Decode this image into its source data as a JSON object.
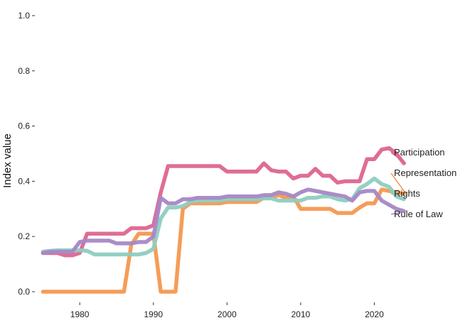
{
  "chart_data": {
    "type": "line",
    "title": "",
    "xlabel": "",
    "ylabel": "Index value",
    "xlim": [
      1974,
      2030
    ],
    "ylim": [
      0,
      1
    ],
    "xticks": [
      1980,
      1990,
      2000,
      2010,
      2020
    ],
    "yticks": [
      0.0,
      0.2,
      0.4,
      0.6,
      0.8,
      1.0
    ],
    "ytick_labels": [
      "0.0",
      "0.2",
      "0.4",
      "0.6",
      "0.8",
      "1.0"
    ],
    "grid": false,
    "legend": "inline-right",
    "x": [
      1975,
      1976,
      1977,
      1978,
      1979,
      1980,
      1981,
      1982,
      1983,
      1984,
      1985,
      1986,
      1987,
      1988,
      1989,
      1990,
      1991,
      1992,
      1993,
      1994,
      1995,
      1996,
      1997,
      1998,
      1999,
      2000,
      2001,
      2002,
      2003,
      2004,
      2005,
      2006,
      2007,
      2008,
      2009,
      2010,
      2011,
      2012,
      2013,
      2014,
      2015,
      2016,
      2017,
      2018,
      2019,
      2020,
      2021,
      2022,
      2023,
      2024
    ],
    "series": [
      {
        "name": "Participation",
        "color": "#dd6590",
        "values": [
          0.14,
          0.14,
          0.14,
          0.132,
          0.132,
          0.14,
          0.21,
          0.21,
          0.21,
          0.21,
          0.21,
          0.21,
          0.23,
          0.23,
          0.23,
          0.24,
          0.36,
          0.455,
          0.455,
          0.455,
          0.455,
          0.455,
          0.455,
          0.455,
          0.455,
          0.435,
          0.435,
          0.435,
          0.435,
          0.435,
          0.465,
          0.44,
          0.435,
          0.435,
          0.41,
          0.42,
          0.42,
          0.445,
          0.42,
          0.42,
          0.395,
          0.4,
          0.4,
          0.4,
          0.48,
          0.48,
          0.515,
          0.52,
          0.5,
          0.465
        ]
      },
      {
        "name": "Representation",
        "color": "#f4984f",
        "values": [
          0,
          0,
          0,
          0,
          0,
          0,
          0,
          0,
          0,
          0,
          0,
          0,
          0.17,
          0.21,
          0.21,
          0.21,
          0,
          0,
          0,
          0.3,
          0.32,
          0.32,
          0.32,
          0.32,
          0.32,
          0.325,
          0.325,
          0.325,
          0.325,
          0.325,
          0.34,
          0.34,
          0.35,
          0.34,
          0.345,
          0.3,
          0.3,
          0.3,
          0.3,
          0.3,
          0.285,
          0.285,
          0.285,
          0.305,
          0.32,
          0.32,
          0.37,
          0.365,
          0.36,
          0.355
        ]
      },
      {
        "name": "Rights",
        "color": "#8ecdc0",
        "values": [
          0.145,
          0.148,
          0.15,
          0.15,
          0.15,
          0.15,
          0.148,
          0.135,
          0.135,
          0.135,
          0.135,
          0.135,
          0.135,
          0.135,
          0.14,
          0.155,
          0.265,
          0.305,
          0.305,
          0.31,
          0.325,
          0.33,
          0.33,
          0.33,
          0.33,
          0.335,
          0.335,
          0.335,
          0.335,
          0.335,
          0.338,
          0.338,
          0.33,
          0.33,
          0.33,
          0.33,
          0.34,
          0.34,
          0.345,
          0.345,
          0.335,
          0.33,
          0.335,
          0.375,
          0.39,
          0.41,
          0.39,
          0.38,
          0.345,
          0.335
        ]
      },
      {
        "name": "Rule of Law",
        "color": "#a687c6",
        "values": [
          0.14,
          0.145,
          0.145,
          0.145,
          0.145,
          0.18,
          0.185,
          0.185,
          0.185,
          0.185,
          0.175,
          0.175,
          0.175,
          0.18,
          0.18,
          0.2,
          0.34,
          0.32,
          0.32,
          0.335,
          0.335,
          0.34,
          0.34,
          0.34,
          0.34,
          0.345,
          0.345,
          0.345,
          0.345,
          0.345,
          0.35,
          0.35,
          0.36,
          0.355,
          0.345,
          0.36,
          0.37,
          0.365,
          0.36,
          0.355,
          0.35,
          0.345,
          0.33,
          0.36,
          0.365,
          0.365,
          0.33,
          0.315,
          0.3,
          0.292
        ]
      }
    ]
  }
}
